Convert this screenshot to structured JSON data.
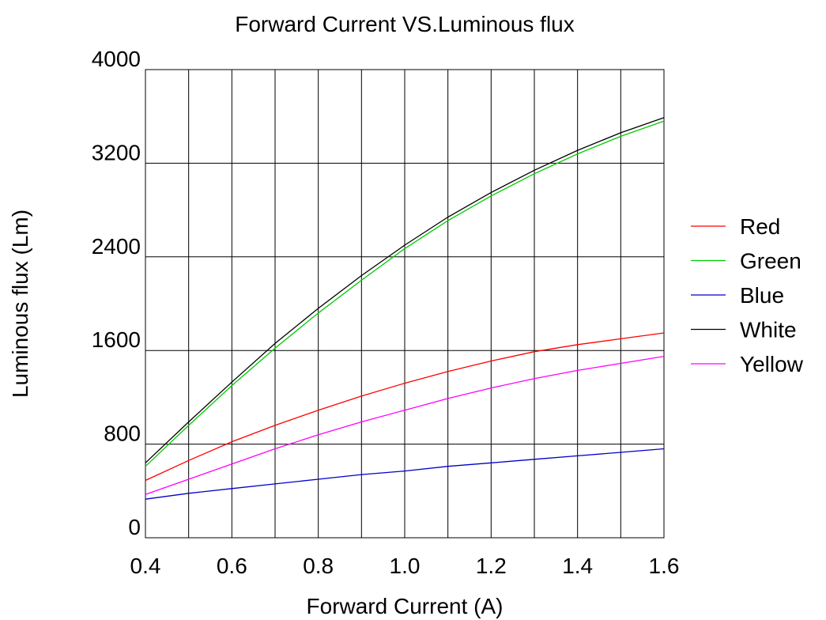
{
  "chart_data": {
    "type": "line",
    "title": "Forward Current VS.Luminous flux",
    "xlabel": "Forward Current  (A)",
    "ylabel": "Luminous flux  (Lm)",
    "xlim": [
      0.4,
      1.6
    ],
    "ylim": [
      0,
      4000
    ],
    "xticks": [
      0.4,
      0.6,
      0.8,
      1.0,
      1.2,
      1.4,
      1.6
    ],
    "xtick_labels": [
      "0.4",
      "0.6",
      "0.8",
      "1.0",
      "1.2",
      "1.4",
      "1.6"
    ],
    "yticks": [
      0,
      800,
      1600,
      2400,
      3200,
      4000
    ],
    "ytick_labels": [
      "0",
      "800",
      "1600",
      "2400",
      "3200",
      "4000"
    ],
    "grid": true,
    "legend_position": "right",
    "x": [
      0.4,
      0.5,
      0.6,
      0.7,
      0.8,
      0.9,
      1.0,
      1.1,
      1.2,
      1.3,
      1.4,
      1.5,
      1.6
    ],
    "series": [
      {
        "name": "Red",
        "color": "#ff0000",
        "values": [
          490,
          660,
          820,
          960,
          1090,
          1210,
          1320,
          1420,
          1510,
          1590,
          1650,
          1700,
          1750
        ]
      },
      {
        "name": "Green",
        "color": "#00cc00",
        "values": [
          610,
          960,
          1300,
          1620,
          1920,
          2200,
          2470,
          2710,
          2920,
          3110,
          3280,
          3430,
          3560
        ]
      },
      {
        "name": "Blue",
        "color": "#0000cc",
        "values": [
          330,
          380,
          420,
          460,
          500,
          540,
          570,
          610,
          640,
          670,
          700,
          730,
          760
        ]
      },
      {
        "name": "White",
        "color": "#000000",
        "values": [
          640,
          990,
          1330,
          1660,
          1960,
          2240,
          2500,
          2740,
          2950,
          3140,
          3310,
          3460,
          3590
        ]
      },
      {
        "name": "Yellow",
        "color": "#ff00ff",
        "values": [
          370,
          500,
          630,
          760,
          880,
          990,
          1090,
          1190,
          1280,
          1360,
          1430,
          1490,
          1550
        ]
      }
    ]
  }
}
